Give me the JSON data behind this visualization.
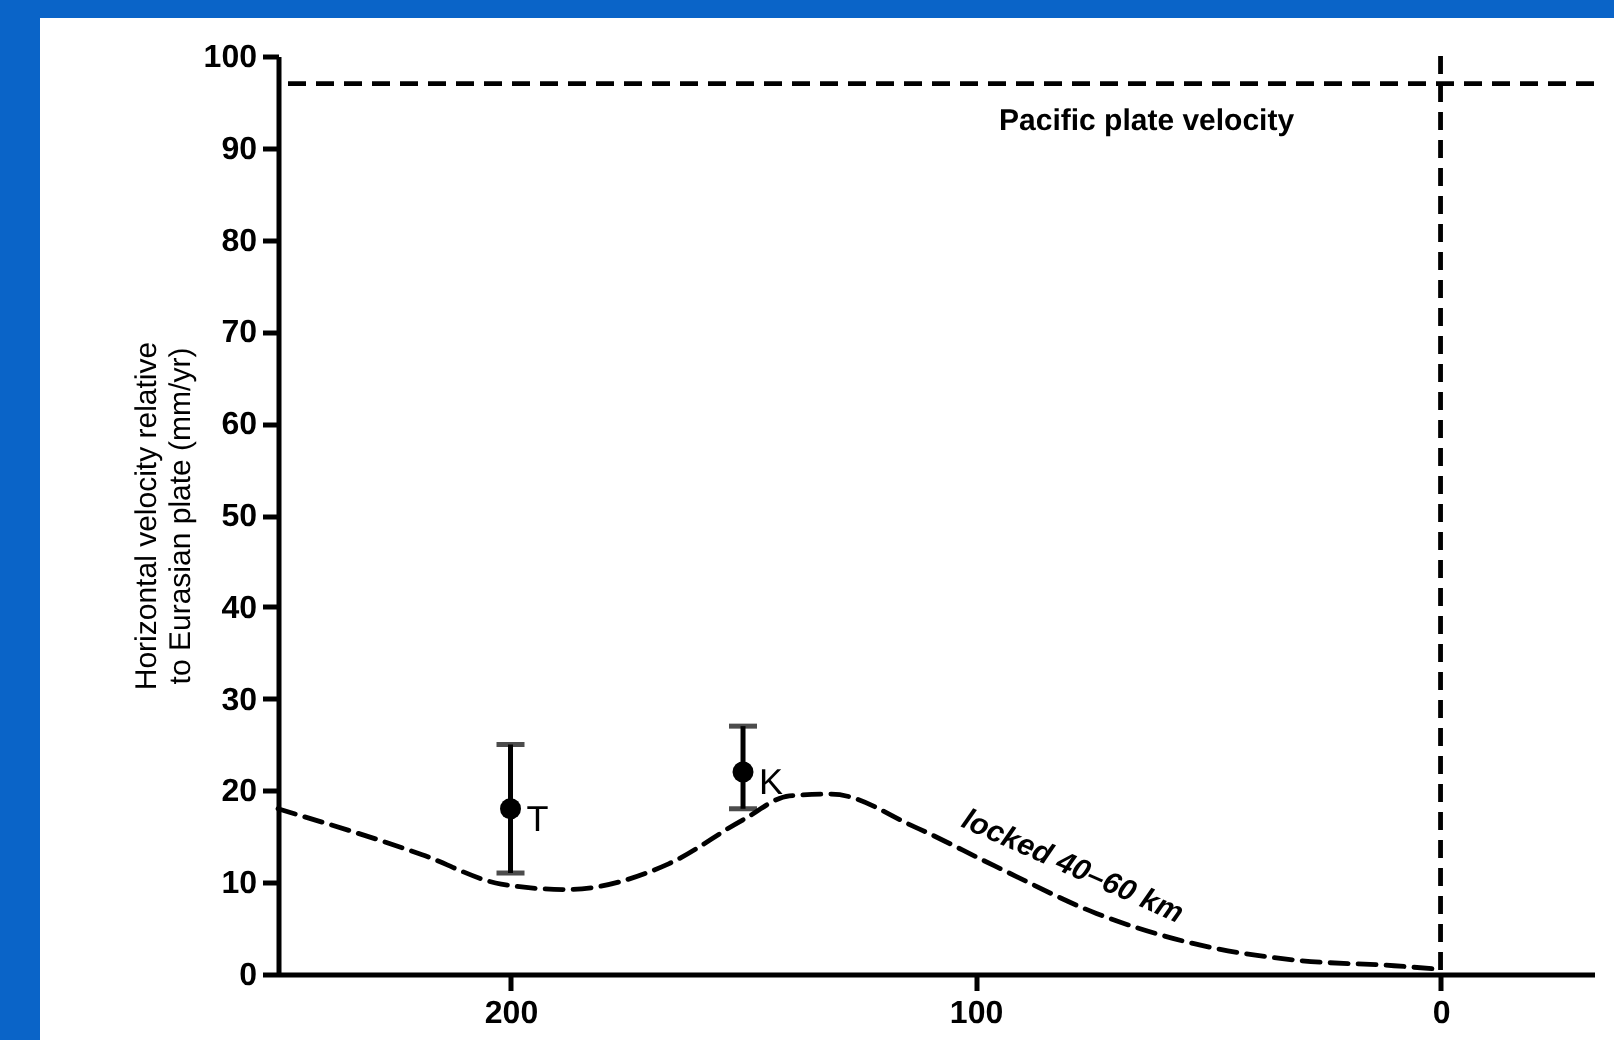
{
  "chart_data": {
    "type": "line",
    "ylabel": "Horizontal velocity relative\nto Eurasian plate (mm/yr)",
    "xlim": [
      250,
      -33
    ],
    "xticks": [
      200,
      100,
      0
    ],
    "ylim": [
      0,
      100
    ],
    "yticks": [
      0,
      10,
      20,
      30,
      40,
      50,
      60,
      70,
      80,
      90,
      100
    ],
    "grid": false,
    "legend": false,
    "series": [
      {
        "name": "locked 40–60 km",
        "color": "#000000",
        "line_style": "dashed",
        "marker": "none",
        "x": [
          250,
          219,
          202,
          188,
          166,
          150,
          140,
          131,
          113,
          96,
          74,
          53,
          31,
          10,
          0
        ],
        "values": [
          18,
          13,
          9.8,
          9.2,
          12,
          16.8,
          19.4,
          19.6,
          16,
          11.8,
          6.6,
          3.3,
          1.5,
          0.9,
          0.5
        ]
      },
      {
        "type": "scatter",
        "color": "#000000",
        "marker": "circle",
        "x": [
          200,
          150
        ],
        "values": [
          18,
          22
        ],
        "errors": [
          [
            11,
            25
          ],
          [
            18,
            27
          ]
        ]
      }
    ],
    "ref_lines": [
      {
        "axis": "y",
        "value": 97,
        "label": "Pacific plate velocity",
        "line_style": "dashed",
        "color": "#000000"
      },
      {
        "axis": "x",
        "value": 0,
        "line_style": "dashed",
        "color": "#000000"
      }
    ],
    "annotations": [
      {
        "text": "T",
        "x": 200,
        "y": 18
      },
      {
        "text": "K",
        "x": 150,
        "y": 22
      }
    ]
  }
}
